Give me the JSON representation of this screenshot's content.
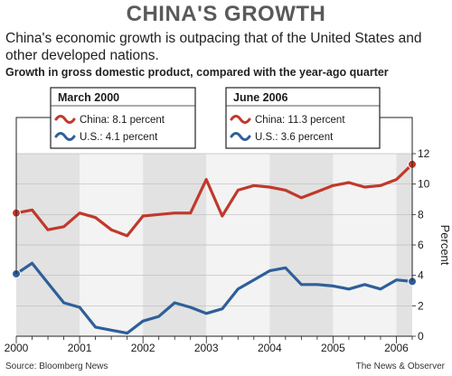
{
  "header": {
    "title": "CHINA'S GROWTH",
    "subtitle": "China's economic growth is outpacing that of the United States and other developed nations.",
    "chart_heading": "Growth in gross domestic product, compared with the year-ago quarter"
  },
  "footer": {
    "source": "Source: Bloomberg News",
    "credit": "The News & Observer"
  },
  "callouts": [
    {
      "title": "March 2000",
      "china_label": "China: 8.1 percent",
      "us_label": "U.S.: 4.1 percent"
    },
    {
      "title": "June 2006",
      "china_label": "China: 11.3 percent",
      "us_label": "U.S.: 3.6 percent"
    }
  ],
  "colors": {
    "china": "#c0392b",
    "us": "#2e5f99",
    "band_shaded": "#e2e2e2",
    "band_light": "#f3f3f3"
  },
  "chart_data": {
    "type": "line",
    "ylabel": "Percent",
    "ylim": [
      0,
      12
    ],
    "yticks": [
      0,
      2,
      4,
      6,
      8,
      10,
      12
    ],
    "xticks": [
      "2000",
      "2001",
      "2002",
      "2003",
      "2004",
      "2005",
      "2006"
    ],
    "grid": true,
    "x": [
      2000.0,
      2000.25,
      2000.5,
      2000.75,
      2001.0,
      2001.25,
      2001.5,
      2001.75,
      2002.0,
      2002.25,
      2002.5,
      2002.75,
      2003.0,
      2003.25,
      2003.5,
      2003.75,
      2004.0,
      2004.25,
      2004.5,
      2004.75,
      2005.0,
      2005.25,
      2005.5,
      2005.75,
      2006.0,
      2006.25
    ],
    "series": [
      {
        "name": "China",
        "values": [
          8.1,
          8.3,
          7.0,
          7.2,
          8.1,
          7.8,
          7.0,
          6.6,
          7.9,
          8.0,
          8.1,
          8.1,
          10.3,
          7.9,
          9.6,
          9.9,
          9.8,
          9.6,
          9.1,
          9.5,
          9.9,
          10.1,
          9.8,
          9.9,
          10.3,
          11.3
        ]
      },
      {
        "name": "U.S.",
        "values": [
          4.1,
          4.8,
          3.5,
          2.2,
          1.9,
          0.6,
          0.4,
          0.2,
          1.0,
          1.3,
          2.2,
          1.9,
          1.5,
          1.8,
          3.1,
          3.7,
          4.3,
          4.5,
          3.4,
          3.4,
          3.3,
          3.1,
          3.4,
          3.1,
          3.7,
          3.6
        ]
      }
    ]
  }
}
